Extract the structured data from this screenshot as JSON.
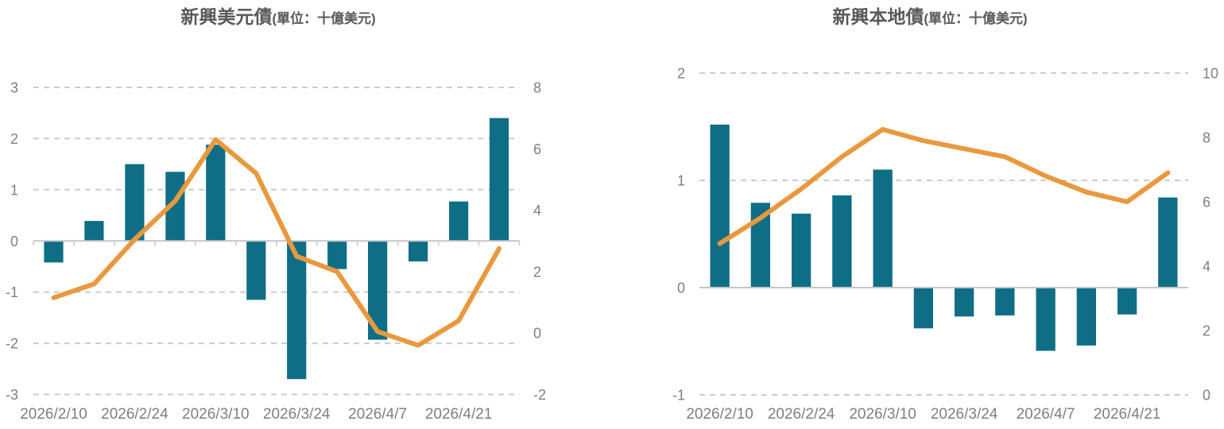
{
  "colors": {
    "bar_teal": "#0e6e86",
    "line_orange": "#e8993e",
    "gridline": "#cccccc",
    "axis_line": "#c6c6c6",
    "tick_text": "#7f7f7f",
    "title_text": "#595959",
    "background": "#ffffff"
  },
  "chart_data": [
    {
      "type": "combo-bar-line",
      "title": "新興美元債",
      "title_unit": "(單位：十億美元)",
      "n_points": 12,
      "x_tick_labels": [
        "2026/2/10",
        "2026/2/24",
        "2026/3/10",
        "2026/3/24",
        "2026/4/7",
        "2026/4/21"
      ],
      "x_tick_point_indices": [
        0,
        2,
        4,
        6,
        8,
        10
      ],
      "series": [
        {
          "name": "weekly-flow-bars",
          "type": "bar",
          "axis": "left",
          "color": "#0e6e86",
          "values": [
            -0.42,
            0.39,
            1.5,
            1.35,
            1.88,
            -1.15,
            -2.7,
            -0.55,
            -1.93,
            -0.4,
            0.77,
            2.4
          ]
        },
        {
          "name": "trend-line",
          "type": "line",
          "axis": "right",
          "color": "#e8993e",
          "values": [
            1.15,
            1.6,
            3.05,
            4.3,
            6.3,
            5.2,
            2.5,
            2.0,
            0.05,
            -0.4,
            0.4,
            2.75
          ]
        }
      ],
      "left_axis": {
        "min": -3,
        "max": 3,
        "tick_labels": [
          "3",
          "2",
          "1",
          "0",
          "-1",
          "-2",
          "-3"
        ],
        "tick_values": [
          3,
          2,
          1,
          0,
          -1,
          -2,
          -3
        ]
      },
      "right_axis": {
        "min": -2,
        "max": 8,
        "tick_labels": [
          "8",
          "6",
          "4",
          "2",
          "0",
          "-2"
        ],
        "tick_values": [
          8,
          6,
          4,
          2,
          0,
          -2
        ]
      },
      "grid": "dashed horizontal lines at left-axis ticks, solid axis line at 0 with category tick marks"
    },
    {
      "type": "combo-bar-line",
      "title": "新興本地債",
      "title_unit": "(單位：十億美元)",
      "n_points": 12,
      "x_tick_labels": [
        "2026/2/10",
        "2026/2/24",
        "2026/3/10",
        "2026/3/24",
        "2026/4/7",
        "2026/4/21"
      ],
      "x_tick_point_indices": [
        0,
        2,
        4,
        6,
        8,
        10
      ],
      "series": [
        {
          "name": "weekly-flow-bars",
          "type": "bar",
          "axis": "left",
          "color": "#0e6e86",
          "values": [
            1.52,
            0.79,
            0.69,
            0.86,
            1.1,
            -0.38,
            -0.27,
            -0.26,
            -0.59,
            -0.54,
            -0.25,
            0.84
          ]
        },
        {
          "name": "trend-line",
          "type": "line",
          "axis": "right",
          "color": "#e8993e",
          "values": [
            4.7,
            5.5,
            6.4,
            7.4,
            8.25,
            7.9,
            7.65,
            7.4,
            6.8,
            6.3,
            6.0,
            6.9
          ]
        }
      ],
      "left_axis": {
        "min": -1,
        "max": 2,
        "tick_labels": [
          "2",
          "1",
          "0",
          "-1"
        ],
        "tick_values": [
          2,
          1,
          0,
          -1
        ]
      },
      "right_axis": {
        "min": 0,
        "max": 10,
        "tick_labels": [
          "10",
          "8",
          "6",
          "4",
          "2",
          "0"
        ],
        "tick_values": [
          10,
          8,
          6,
          4,
          2,
          0
        ]
      },
      "grid": "dashed horizontal lines at left-axis ticks, solid axis line at 0"
    }
  ]
}
